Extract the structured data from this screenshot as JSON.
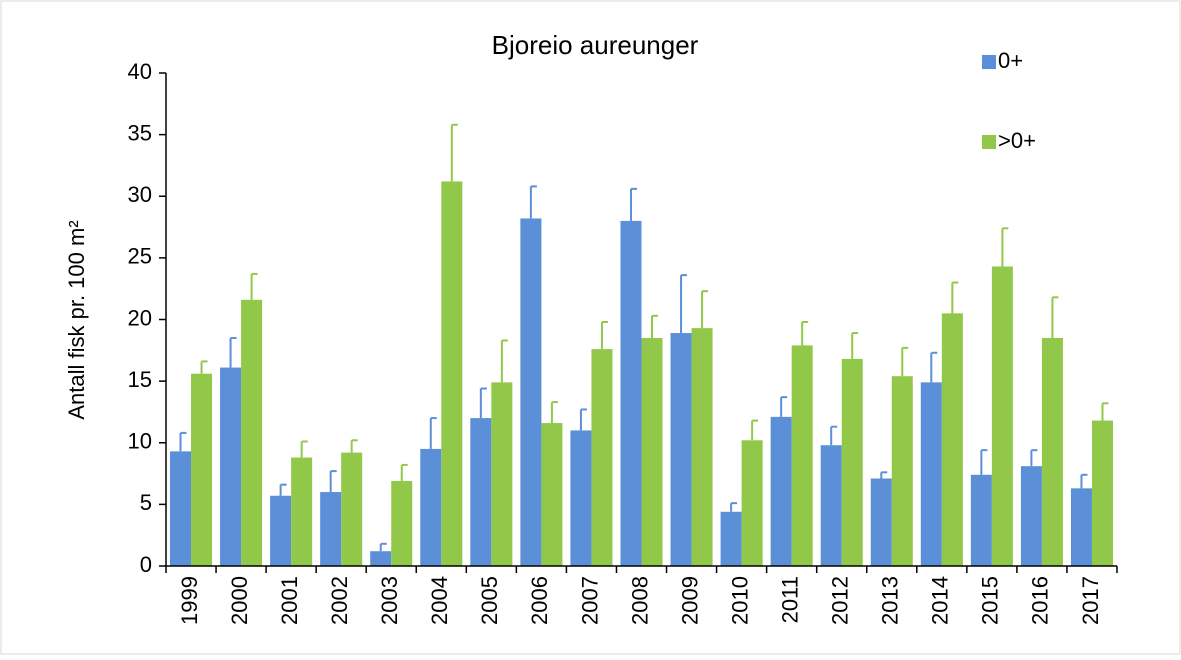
{
  "chart_data": {
    "type": "bar",
    "title": "Bjoreio aureunger",
    "y_label": "Antall fisk pr. 100 m²",
    "categories": [
      "1999",
      "2000",
      "2001",
      "2002",
      "2003",
      "2004",
      "2005",
      "2006",
      "2007",
      "2008",
      "2009",
      "2010",
      "2011",
      "2012",
      "2013",
      "2014",
      "2015",
      "2016",
      "2017"
    ],
    "series": [
      {
        "name": "0+",
        "color": "#5b8fd8",
        "values": [
          9.3,
          16.1,
          5.7,
          6.0,
          1.2,
          9.5,
          12.0,
          28.2,
          11.0,
          28.0,
          18.9,
          4.4,
          12.1,
          9.8,
          7.1,
          14.9,
          7.4,
          8.1,
          6.3
        ],
        "errors": [
          1.5,
          2.4,
          0.9,
          1.7,
          0.6,
          2.5,
          2.4,
          2.6,
          1.7,
          2.6,
          4.7,
          0.7,
          1.6,
          1.5,
          0.5,
          2.4,
          2.0,
          1.3,
          1.1
        ]
      },
      {
        "name": ">0+",
        "color": "#92c84a",
        "values": [
          15.6,
          21.6,
          8.8,
          9.2,
          6.9,
          31.2,
          14.9,
          11.6,
          17.6,
          18.5,
          19.3,
          10.2,
          17.9,
          16.8,
          15.4,
          20.5,
          24.3,
          18.5,
          11.8
        ],
        "errors": [
          1.0,
          2.1,
          1.3,
          1.0,
          1.3,
          4.6,
          3.4,
          1.7,
          2.2,
          1.8,
          3.0,
          1.6,
          1.9,
          2.1,
          2.3,
          2.5,
          3.1,
          3.3,
          1.4
        ]
      }
    ],
    "ylim": [
      0,
      40
    ],
    "yticks": [
      0,
      5,
      10,
      15,
      20,
      25,
      30,
      35,
      40
    ],
    "grid": false,
    "legend": "top-right"
  }
}
